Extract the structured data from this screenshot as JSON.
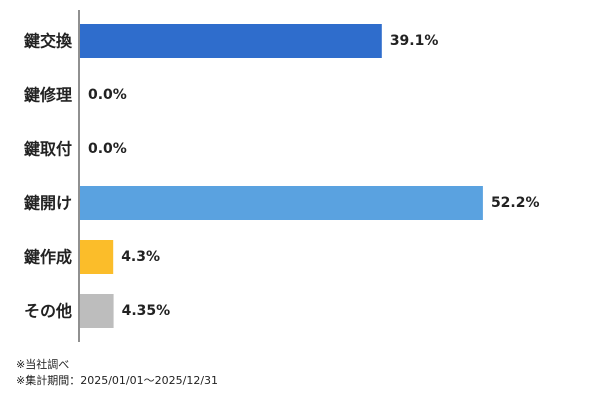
{
  "chart_data": {
    "type": "bar",
    "orientation": "horizontal",
    "categories": [
      "鍵交換",
      "鍵修理",
      "鍵取付",
      "鍵開け",
      "鍵作成",
      "その他"
    ],
    "values": [
      39.1,
      0.0,
      0.0,
      52.2,
      4.3,
      4.35
    ],
    "value_labels": [
      "39.1%",
      "0.0%",
      "0.0%",
      "52.2%",
      "4.3%",
      "4.35%"
    ],
    "colors": [
      "#2f6dcc",
      "#2f6dcc",
      "#2f6dcc",
      "#5aa2e0",
      "#fbbd2a",
      "#bdbdbd"
    ],
    "xlim": [
      0,
      57
    ],
    "grid": false,
    "legend": "none"
  },
  "notes": {
    "source": "※当社調べ",
    "period": "※集計期間：2025/01/01～2025/12/31"
  }
}
